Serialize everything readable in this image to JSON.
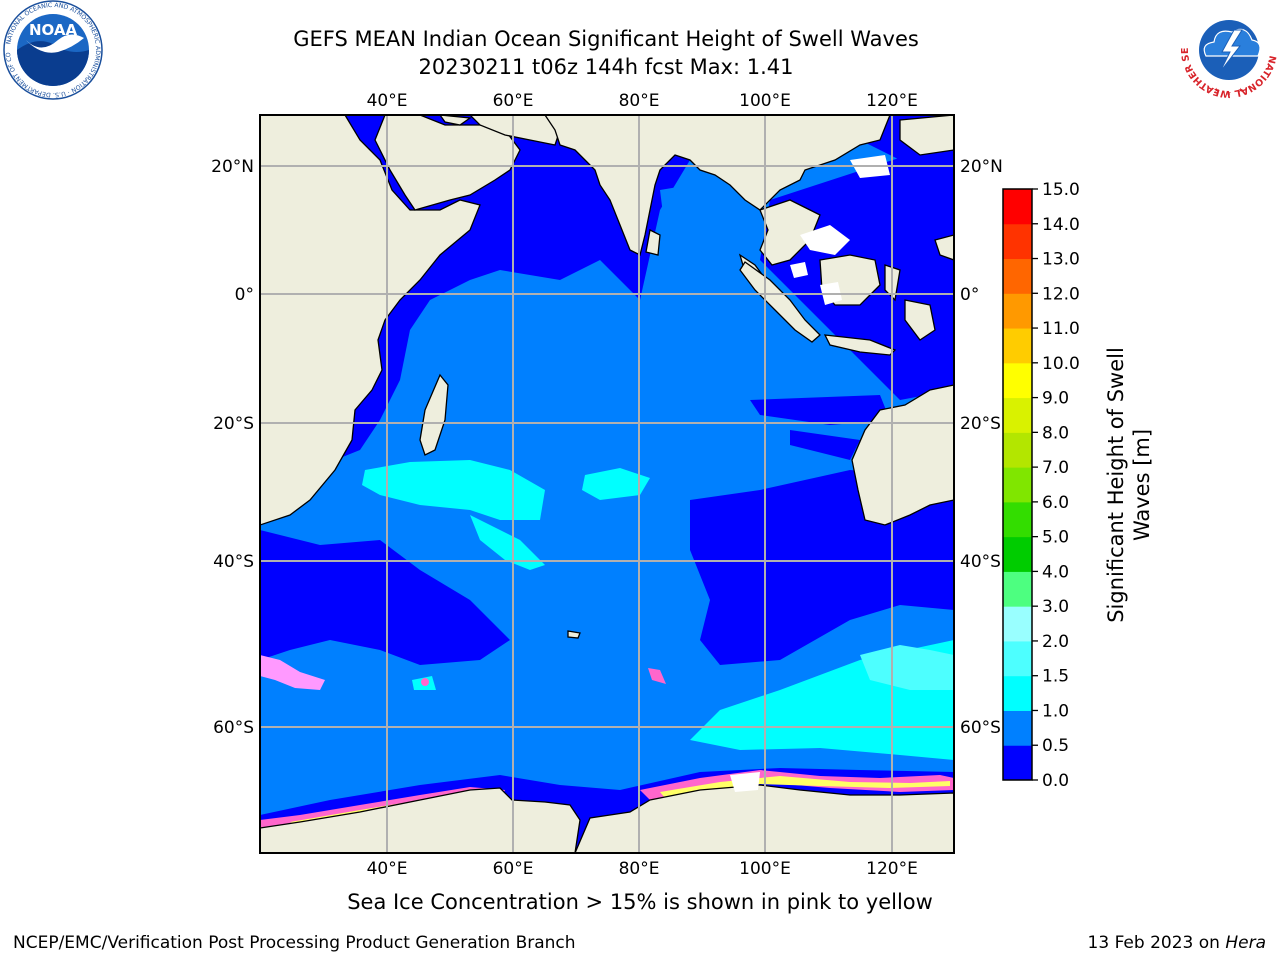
{
  "header": {
    "title_line1": "GEFS MEAN Indian Ocean Significant Height of Swell Waves",
    "title_line2": "20230211 t06z 144h fcst   Max: 1.41"
  },
  "logos": {
    "left": {
      "icon": "noaa-logo",
      "text": "NOAA",
      "ring_text": "NATIONAL OCEANIC AND ATMOSPHERIC ADMINISTRATION · U.S. DEPARTMENT OF COMMERCE"
    },
    "right": {
      "icon": "nws-logo",
      "ring_text": "NATIONAL WEATHER SERVICE"
    }
  },
  "map": {
    "projection": "cylindrical",
    "lon_range": [
      20,
      130
    ],
    "lat_range": [
      -72,
      28
    ],
    "lon_ticks": [
      "40°E",
      "60°E",
      "80°E",
      "100°E",
      "120°E"
    ],
    "lat_ticks": [
      "20°N",
      "0°",
      "20°S",
      "40°S",
      "60°S"
    ],
    "gridlines": true,
    "colors": {
      "land": "#eeeedd",
      "ocean_0_0.5": "#0000ff",
      "ocean_0.5_1.0": "#0080ff",
      "ocean_1.0_1.5": "#00ffff",
      "ocean_1.5_2.0": "#33ffff",
      "sea_ice": [
        "#ff66cc",
        "#ff99ff",
        "#ffff66"
      ]
    }
  },
  "colorbar": {
    "label_line1": "Significant Height of Swell",
    "label_line2": "Waves [m]",
    "ticks": [
      "0.0",
      "0.5",
      "1.0",
      "1.5",
      "2.0",
      "3.0",
      "4.0",
      "5.0",
      "6.0",
      "7.0",
      "8.0",
      "9.0",
      "10.0",
      "11.0",
      "12.0",
      "13.0",
      "14.0",
      "15.0"
    ],
    "colors": [
      "#0000ff",
      "#0080ff",
      "#00ffff",
      "#4dffff",
      "#99ffff",
      "#4dff80",
      "#00cc00",
      "#33dd00",
      "#80e600",
      "#b3e600",
      "#d9f200",
      "#ffff00",
      "#ffcc00",
      "#ff9900",
      "#ff6600",
      "#ff3300",
      "#ff0000"
    ]
  },
  "footer": {
    "note": "Sea Ice Concentration > 15% is shown in pink to yellow",
    "credit": "NCEP/EMC/Verification Post Processing Product Generation Branch",
    "date_prefix": "13 Feb 2023 on ",
    "host": "Hera"
  }
}
